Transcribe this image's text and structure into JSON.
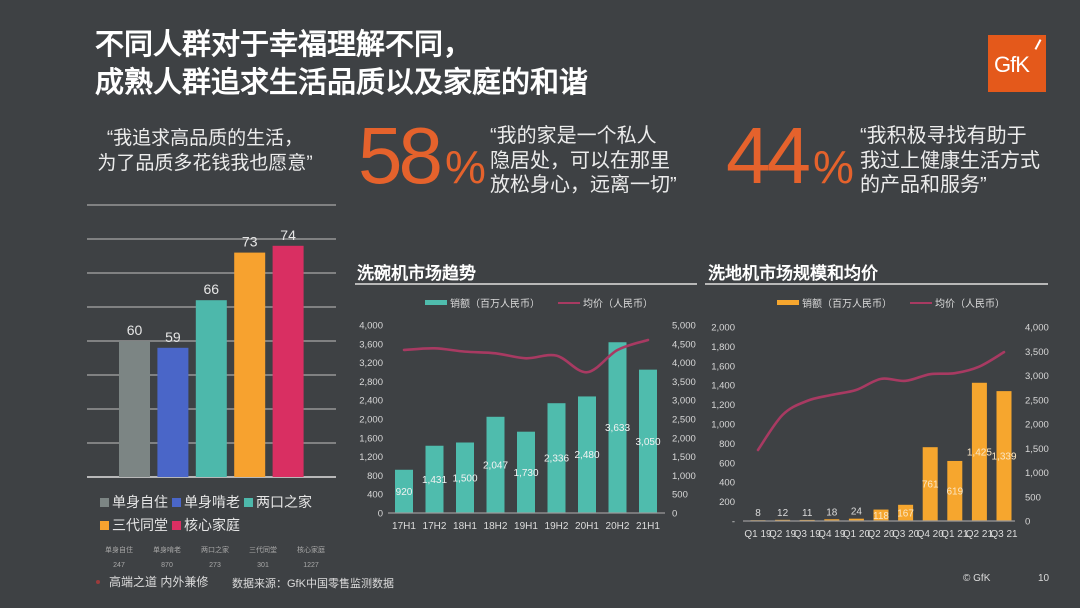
{
  "slide": {
    "title_lines": [
      "不同人群对于幸福理解不同，",
      "成熟人群追求生活品质以及家庭的和谐"
    ],
    "logo_text": "GfK",
    "copyright": "© GfK",
    "page_number": "10"
  },
  "quotes": [
    {
      "lines": [
        "“我追求高品质的生活，",
        "为了品质多花钱我也愿意”"
      ]
    },
    {
      "stat": "58",
      "unit": "%",
      "lines": [
        "“我的家是一个私人",
        "隐居处，可以在那里",
        "放松身心，远离一切”"
      ]
    },
    {
      "stat": "44",
      "unit": "%",
      "lines": [
        "“我积极寻找有助于",
        "我过上健康生活方式",
        "的产品和服务”"
      ]
    }
  ],
  "sample_sizes": {
    "labels": [
      "单身自住",
      "单身啃老",
      "两口之家",
      "三代同堂",
      "核心家庭"
    ],
    "values": [
      "247",
      "870",
      "273",
      "301",
      "1227"
    ]
  },
  "footer": {
    "tagline": "高端之道 内外兼修",
    "source": "数据来源：GfK中国零售监测数据"
  },
  "colors": {
    "background": "#3e4144",
    "accent_orange": "#e5622c",
    "logo": "#e4591b",
    "price_line": "#a83a62"
  },
  "chart_data": [
    {
      "type": "bar",
      "title": "",
      "categories": [
        "单身自住",
        "单身啃老",
        "两口之家",
        "三代同堂",
        "核心家庭"
      ],
      "values": [
        60,
        59,
        66,
        73,
        74
      ],
      "data_labels": [
        "60",
        "59",
        "66",
        "73",
        "74"
      ],
      "colors": [
        "#7c8584",
        "#4a66c8",
        "#4db8ab",
        "#f7a22f",
        "#d92f62"
      ],
      "xlabel": "",
      "ylabel": "",
      "ylim": [
        40,
        80
      ],
      "grid": true,
      "grid_step": 5,
      "legend": [
        "单身自住",
        "单身啃老",
        "两口之家",
        "三代同堂",
        "核心家庭"
      ],
      "legend_position": "bottom"
    },
    {
      "type": "bar",
      "title": "洗碗机市场趋势",
      "categories": [
        "17H1",
        "17H2",
        "18H1",
        "18H2",
        "19H1",
        "19H2",
        "20H1",
        "20H2",
        "21H1"
      ],
      "series": [
        {
          "name": "销额（百万人民币）",
          "type": "bar",
          "axis": "left",
          "color": "#4fbcad",
          "values": [
            920,
            1431,
            1500,
            2047,
            1730,
            2336,
            2480,
            3633,
            3050
          ],
          "data_labels": [
            "920",
            "1,431",
            "1,500",
            "2,047",
            "1,730",
            "2,336",
            "2,480",
            "3,633",
            "3,050"
          ]
        },
        {
          "name": "均价（人民币）",
          "type": "line",
          "axis": "right",
          "color": "#a83a62",
          "values": [
            4336,
            4380,
            4292,
            4248,
            4115,
            4186,
            3743,
            4336,
            4602
          ]
        }
      ],
      "y_left": {
        "min": 0,
        "max": 4000,
        "step": 400,
        "tick_labels": [
          "0",
          "400",
          "800",
          "1,200",
          "1,600",
          "2,000",
          "2,400",
          "2,800",
          "3,200",
          "3,600",
          "4,000"
        ]
      },
      "y_right": {
        "min": 0,
        "max": 5000,
        "step": 500,
        "tick_labels": [
          "0",
          "500",
          "1,000",
          "1,500",
          "2,000",
          "2,500",
          "3,000",
          "3,500",
          "4,000",
          "4,500",
          "5,000"
        ]
      },
      "grid": false,
      "legend_position": "top"
    },
    {
      "type": "bar",
      "title": "洗地机市场规模和均价",
      "categories": [
        "Q1 19",
        "Q2 19",
        "Q3 19",
        "Q4 19",
        "Q1 20",
        "Q2 20",
        "Q3 20",
        "Q4 20",
        "Q1 21",
        "Q2 21",
        "Q3 21"
      ],
      "series": [
        {
          "name": "销额（百万人民币）",
          "type": "bar",
          "axis": "left",
          "color": "#f6a62e",
          "values": [
            8,
            12,
            11,
            18,
            24,
            118,
            167,
            761,
            619,
            1425,
            1339
          ],
          "data_labels": [
            "8",
            "12",
            "11",
            "18",
            "24",
            "118",
            "167",
            "761",
            "619",
            "1,425",
            "1,339"
          ]
        },
        {
          "name": "均价（人民币）",
          "type": "line",
          "axis": "right",
          "color": "#a83a62",
          "values": [
            1465,
            2188,
            2477,
            2600,
            2704,
            2931,
            2890,
            3027,
            3048,
            3185,
            3481
          ]
        }
      ],
      "y_left": {
        "min": 0,
        "max": 2000,
        "step": 200,
        "tick_labels": [
          "-",
          "200",
          "400",
          "600",
          "800",
          "1,000",
          "1,200",
          "1,400",
          "1,600",
          "1,800",
          "2,000"
        ]
      },
      "y_right": {
        "min": 0,
        "max": 4000,
        "step": 500,
        "tick_labels": [
          "0",
          "500",
          "1,000",
          "1,500",
          "2,000",
          "2,500",
          "3,000",
          "3,500",
          "4,000"
        ]
      },
      "grid": false,
      "legend_position": "top"
    }
  ]
}
